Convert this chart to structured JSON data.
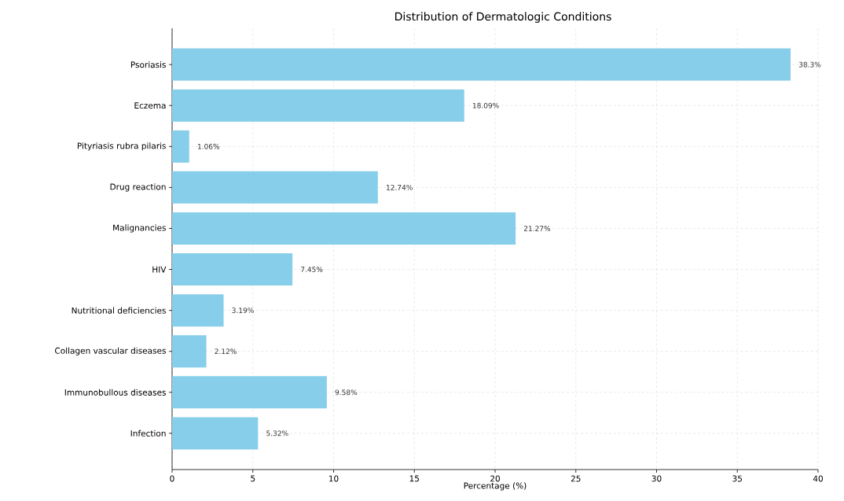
{
  "chart_data": {
    "type": "bar",
    "orientation": "horizontal",
    "title": "Distribution of Dermatologic Conditions",
    "xlabel": "Percentage (%)",
    "categories": [
      "Psoriasis",
      "Eczema",
      "Pityriasis rubra pilaris",
      "Drug reaction",
      "Malignancies",
      "HIV",
      "Nutritional deficiencies",
      "Collagen vascular diseases",
      "Immunobullous diseases",
      "Infection"
    ],
    "values": [
      38.3,
      18.09,
      1.06,
      12.74,
      21.27,
      7.45,
      3.19,
      2.12,
      9.58,
      5.32
    ],
    "value_labels": [
      "38.3%",
      "18.09%",
      "1.06%",
      "12.74%",
      "21.27%",
      "7.45%",
      "3.19%",
      "2.12%",
      "9.58%",
      "5.32%"
    ],
    "color": "#87ceeb",
    "xlim": [
      0,
      40
    ],
    "xticks": [
      0,
      5,
      10,
      15,
      20,
      25,
      30,
      35,
      40
    ],
    "grid": true
  }
}
